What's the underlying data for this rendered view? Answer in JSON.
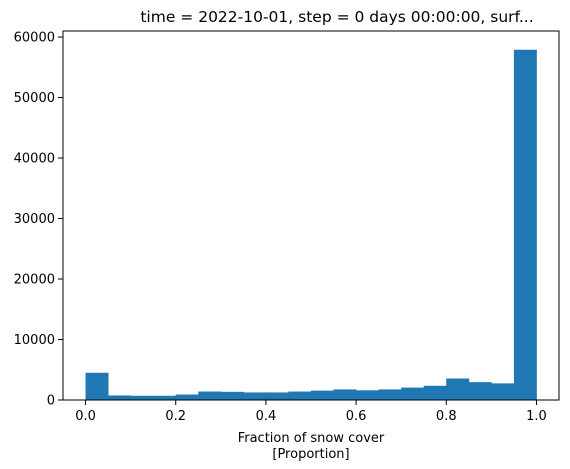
{
  "chart_data": {
    "type": "bar",
    "title": "time = 2022-10-01, step = 0 days 00:00:00, surf...",
    "xlabel": [
      "Fraction of snow cover",
      "[Proportion]"
    ],
    "ylabel": "",
    "bar_color": "#1f77b4",
    "bin_edges": [
      0.0,
      0.05,
      0.1,
      0.15,
      0.2,
      0.25,
      0.3,
      0.35,
      0.4,
      0.45,
      0.5,
      0.55,
      0.6,
      0.65,
      0.7,
      0.75,
      0.8,
      0.85,
      0.9,
      0.95,
      1.0
    ],
    "values": [
      4500,
      750,
      700,
      700,
      900,
      1400,
      1350,
      1250,
      1250,
      1400,
      1550,
      1750,
      1600,
      1750,
      2050,
      2350,
      3550,
      2950,
      2750,
      57900
    ],
    "xlim": [
      -0.05,
      1.05
    ],
    "ylim": [
      0,
      61000
    ],
    "xticks": [
      0.0,
      0.2,
      0.4,
      0.6,
      0.8,
      1.0
    ],
    "xtick_labels": [
      "0.0",
      "0.2",
      "0.4",
      "0.6",
      "0.8",
      "1.0"
    ],
    "yticks": [
      0,
      10000,
      20000,
      30000,
      40000,
      50000,
      60000
    ],
    "ytick_labels": [
      "0",
      "10000",
      "20000",
      "30000",
      "40000",
      "50000",
      "60000"
    ],
    "grid": false,
    "legend": false
  }
}
